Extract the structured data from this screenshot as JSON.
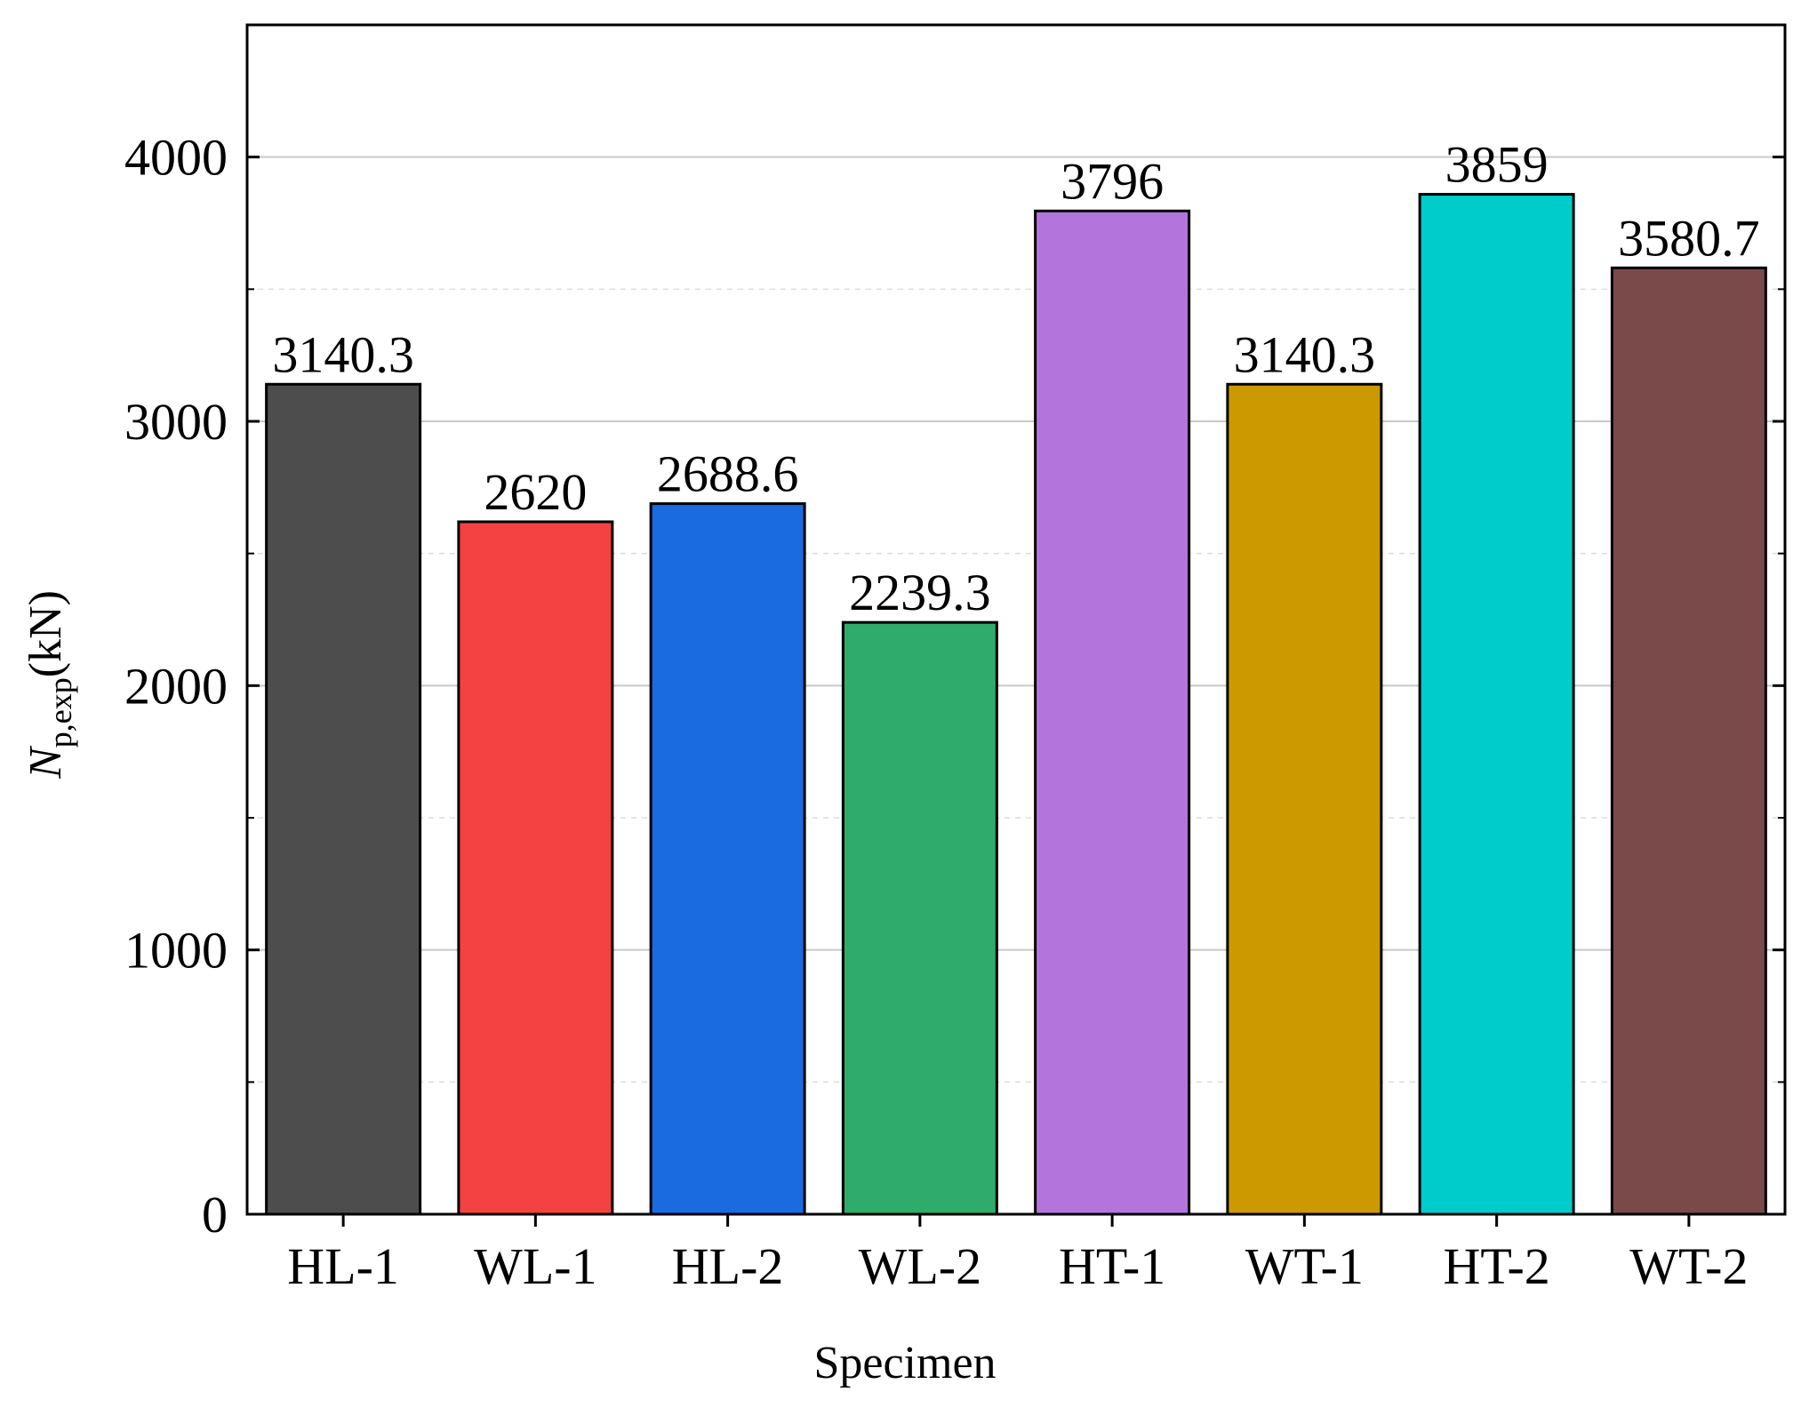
{
  "chart_data": {
    "type": "bar",
    "title": "",
    "xlabel": "Specimen",
    "ylabel": {
      "base": "N",
      "subscript": "p,exp",
      "unit": "(kN)"
    },
    "categories": [
      "HL-1",
      "WL-1",
      "HL-2",
      "WL-2",
      "HT-1",
      "WT-1",
      "HT-2",
      "WT-2"
    ],
    "values": [
      3140.3,
      2620,
      2688.6,
      2239.3,
      3796,
      3140.3,
      3859,
      3580.7
    ],
    "value_labels": [
      "3140.3",
      "2620",
      "2688.6",
      "2239.3",
      "3796",
      "3140.3",
      "3859",
      "3580.7"
    ],
    "colors": [
      "#4d4d4d",
      "#f44242",
      "#1a6ae0",
      "#2fab6b",
      "#b374db",
      "#cc9900",
      "#00cccc",
      "#7a4a4a"
    ],
    "ylim": [
      0,
      4500
    ],
    "yticks": [
      0,
      1000,
      2000,
      3000,
      4000
    ],
    "ytick_labels": [
      "0",
      "1000",
      "2000",
      "3000",
      "4000"
    ],
    "minor_grid": [
      500,
      1500,
      2500,
      3500
    ],
    "grid": true
  }
}
